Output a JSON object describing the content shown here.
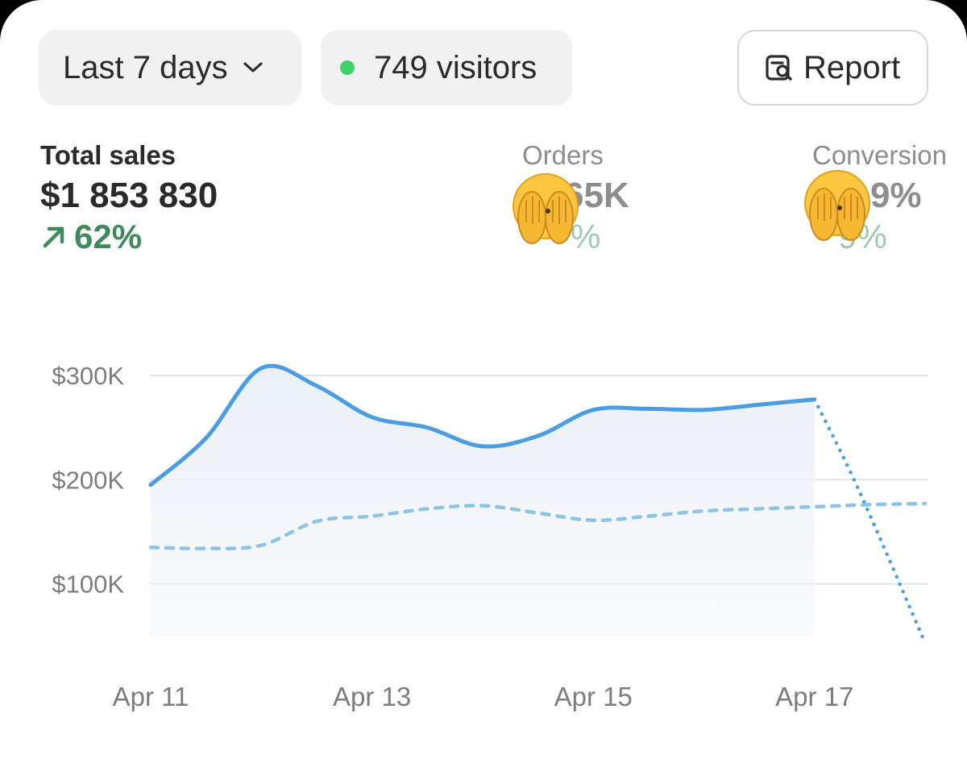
{
  "toolbar": {
    "range_label": "Last 7 days",
    "visitors_label": "749 visitors",
    "visitors_dot_color": "#3ed26a",
    "report_label": "Report"
  },
  "metrics": [
    {
      "label": "Total sales",
      "value": "$1 853 830",
      "change": "62%",
      "trend": "up"
    },
    {
      "label": "Orders",
      "value": "65K",
      "change": "%",
      "trend": "up",
      "obscured_by": "see-no-evil-emoji"
    },
    {
      "label": "Conversion",
      "value": "9%",
      "change": "9%",
      "trend": "up",
      "obscured_by": "see-no-evil-emoji"
    }
  ],
  "chart_data": {
    "type": "line",
    "title": "",
    "x_tick_labels": [
      "Apr 11",
      "Apr 13",
      "Apr 15",
      "Apr 17"
    ],
    "y_tick_labels": [
      "$300K",
      "$200K",
      "$100K"
    ],
    "ylim": [
      40000,
      330000
    ],
    "grid": true,
    "colors": {
      "current": "#4a9de0",
      "previous": "#8cc4e6",
      "grid": "#e3e3e3"
    },
    "series": [
      {
        "style": "solid",
        "x": [
          0,
          0.5,
          1,
          1.5,
          2,
          2.5,
          3,
          3.5,
          4,
          4.5,
          5,
          5.5,
          6
        ],
        "values": [
          195000,
          240000,
          307000,
          290000,
          260000,
          250000,
          232000,
          242000,
          267000,
          268000,
          267000,
          272000,
          277000
        ]
      },
      {
        "style": "dotted",
        "x": [
          6,
          6.4,
          7
        ],
        "values": [
          277000,
          190000,
          43000
        ]
      },
      {
        "style": "dashed",
        "x": [
          0,
          0.5,
          1,
          1.5,
          2,
          2.5,
          3,
          3.5,
          4,
          4.5,
          5,
          5.5,
          6,
          6.5,
          7
        ],
        "values": [
          135000,
          134000,
          137000,
          160000,
          165000,
          172000,
          175000,
          168000,
          161000,
          165000,
          170000,
          172000,
          174000,
          176000,
          177000
        ]
      }
    ]
  }
}
